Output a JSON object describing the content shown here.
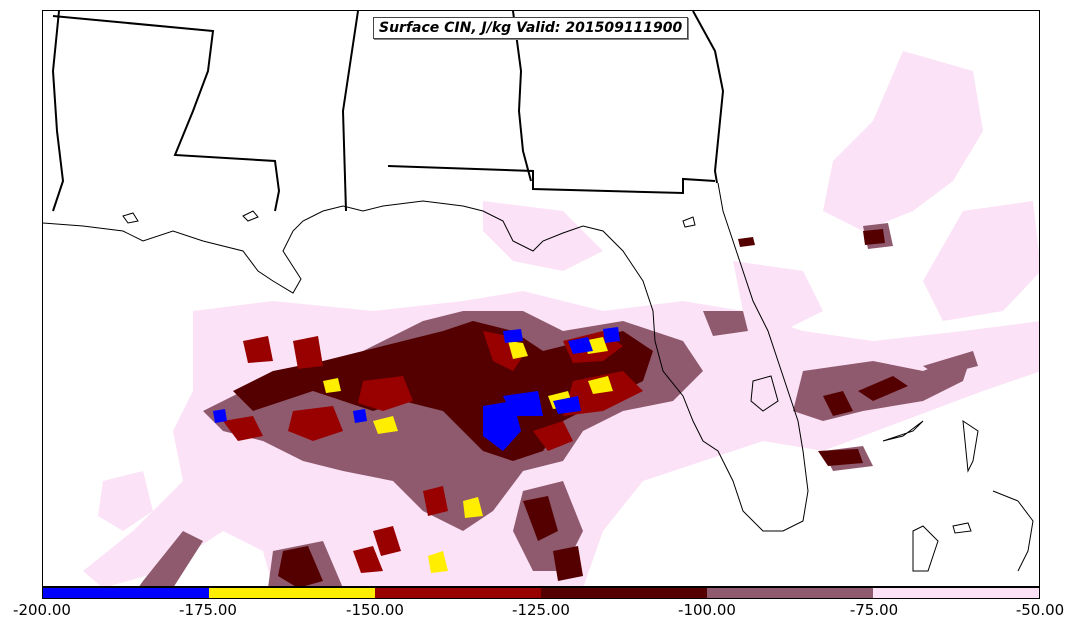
{
  "title": "Surface CIN, J/kg Valid: 201509111900",
  "colorbar": {
    "ticks": [
      "-200.00",
      "-175.00",
      "-150.00",
      "-125.00",
      "-100.00",
      "-75.00",
      "-50.00"
    ],
    "colors": [
      "#0000ff",
      "#ffee00",
      "#990000",
      "#550000",
      "#8f5a6e",
      "#fbe2f6"
    ]
  },
  "palette": {
    "light": "#fbe2f6",
    "mauve": "#8f5a6e",
    "dark": "#550000",
    "red": "#990000",
    "yellow": "#ffee00",
    "blue": "#0000ff"
  }
}
